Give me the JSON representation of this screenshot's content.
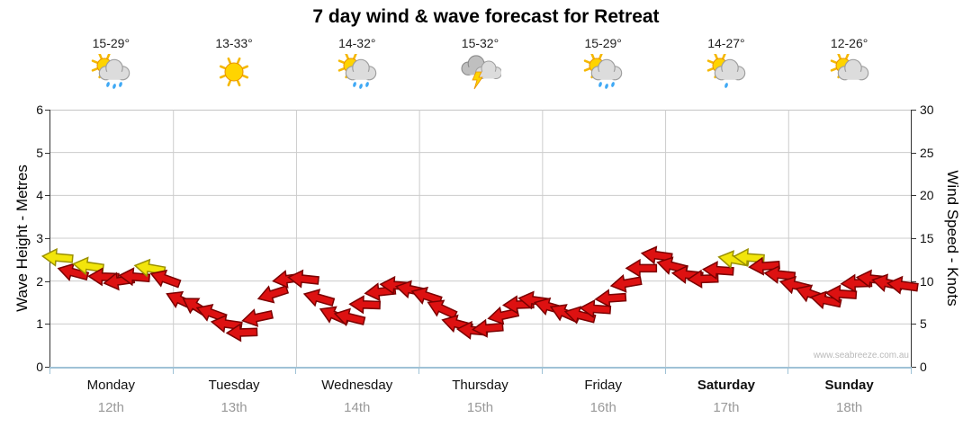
{
  "title": "7 day wind & wave forecast for Retreat",
  "watermark": "www.seabreeze.com.au",
  "axes": {
    "left_title": "Wave Height - Metres",
    "right_title": "Wind Speed - Knots",
    "left_ticks": [
      "0",
      "1",
      "2",
      "3",
      "4",
      "5",
      "6"
    ],
    "right_ticks": [
      "0",
      "5",
      "10",
      "15",
      "20",
      "25",
      "30"
    ]
  },
  "days": [
    {
      "name": "Monday",
      "date": "12th",
      "temp": "15-29°",
      "icon": "sun-showers",
      "bold": false
    },
    {
      "name": "Tuesday",
      "date": "13th",
      "temp": "13-33°",
      "icon": "sunny",
      "bold": false
    },
    {
      "name": "Wednesday",
      "date": "14th",
      "temp": "14-32°",
      "icon": "sun-showers",
      "bold": false
    },
    {
      "name": "Thursday",
      "date": "15th",
      "temp": "15-32°",
      "icon": "storm",
      "bold": false
    },
    {
      "name": "Friday",
      "date": "16th",
      "temp": "15-29°",
      "icon": "sun-showers",
      "bold": false
    },
    {
      "name": "Saturday",
      "date": "17th",
      "temp": "14-27°",
      "icon": "sun-cloud-drizzle",
      "bold": true
    },
    {
      "name": "Sunday",
      "date": "18th",
      "temp": "12-26°",
      "icon": "sun-cloud",
      "bold": true
    }
  ],
  "chart_data": {
    "type": "wind-arrows",
    "title": "7 day wind & wave forecast for Retreat",
    "ylabel_left": "Wave Height - Metres",
    "ylabel_right": "Wind Speed - Knots",
    "ylim_left": [
      0,
      6
    ],
    "ylim_right": [
      0,
      30
    ],
    "grid": true,
    "categories": [
      "Monday 12th",
      "Tuesday 13th",
      "Wednesday 14th",
      "Thursday 15th",
      "Friday 16th",
      "Saturday 17th",
      "Sunday 18th"
    ],
    "points_per_day": 8,
    "arrow_color_key": {
      "r": "red",
      "y": "yellow"
    },
    "points": [
      {
        "v": 2.55,
        "d": 185,
        "c": "y"
      },
      {
        "v": 2.2,
        "d": 195,
        "c": "r"
      },
      {
        "v": 2.35,
        "d": 188,
        "c": "y"
      },
      {
        "v": 2.1,
        "d": 182,
        "c": "r"
      },
      {
        "v": 2.0,
        "d": 172,
        "c": "r"
      },
      {
        "v": 2.1,
        "d": 185,
        "c": "r"
      },
      {
        "v": 2.3,
        "d": 190,
        "c": "y"
      },
      {
        "v": 2.05,
        "d": 200,
        "c": "r"
      },
      {
        "v": 1.55,
        "d": 205,
        "c": "r"
      },
      {
        "v": 1.4,
        "d": 212,
        "c": "r"
      },
      {
        "v": 1.25,
        "d": 200,
        "c": "r"
      },
      {
        "v": 1.0,
        "d": 188,
        "c": "r"
      },
      {
        "v": 0.8,
        "d": 178,
        "c": "r"
      },
      {
        "v": 1.15,
        "d": 168,
        "c": "r"
      },
      {
        "v": 1.7,
        "d": 162,
        "c": "r"
      },
      {
        "v": 2.05,
        "d": 172,
        "c": "r"
      },
      {
        "v": 2.05,
        "d": 186,
        "c": "r"
      },
      {
        "v": 1.6,
        "d": 196,
        "c": "r"
      },
      {
        "v": 1.2,
        "d": 204,
        "c": "r"
      },
      {
        "v": 1.15,
        "d": 194,
        "c": "r"
      },
      {
        "v": 1.45,
        "d": 182,
        "c": "r"
      },
      {
        "v": 1.75,
        "d": 174,
        "c": "r"
      },
      {
        "v": 1.9,
        "d": 184,
        "c": "r"
      },
      {
        "v": 1.8,
        "d": 192,
        "c": "r"
      },
      {
        "v": 1.65,
        "d": 198,
        "c": "r"
      },
      {
        "v": 1.35,
        "d": 205,
        "c": "r"
      },
      {
        "v": 1.0,
        "d": 195,
        "c": "r"
      },
      {
        "v": 0.85,
        "d": 185,
        "c": "r"
      },
      {
        "v": 0.9,
        "d": 175,
        "c": "r"
      },
      {
        "v": 1.2,
        "d": 168,
        "c": "r"
      },
      {
        "v": 1.45,
        "d": 178,
        "c": "r"
      },
      {
        "v": 1.55,
        "d": 188,
        "c": "r"
      },
      {
        "v": 1.4,
        "d": 196,
        "c": "r"
      },
      {
        "v": 1.25,
        "d": 204,
        "c": "r"
      },
      {
        "v": 1.2,
        "d": 194,
        "c": "r"
      },
      {
        "v": 1.35,
        "d": 184,
        "c": "r"
      },
      {
        "v": 1.6,
        "d": 176,
        "c": "r"
      },
      {
        "v": 1.95,
        "d": 170,
        "c": "r"
      },
      {
        "v": 2.3,
        "d": 180,
        "c": "r"
      },
      {
        "v": 2.6,
        "d": 188,
        "c": "r"
      },
      {
        "v": 2.35,
        "d": 194,
        "c": "r"
      },
      {
        "v": 2.15,
        "d": 186,
        "c": "r"
      },
      {
        "v": 2.05,
        "d": 178,
        "c": "r"
      },
      {
        "v": 2.25,
        "d": 184,
        "c": "r"
      },
      {
        "v": 2.5,
        "d": 190,
        "c": "y"
      },
      {
        "v": 2.55,
        "d": 184,
        "c": "y"
      },
      {
        "v": 2.35,
        "d": 176,
        "c": "r"
      },
      {
        "v": 2.15,
        "d": 186,
        "c": "r"
      },
      {
        "v": 1.9,
        "d": 194,
        "c": "r"
      },
      {
        "v": 1.7,
        "d": 200,
        "c": "r"
      },
      {
        "v": 1.55,
        "d": 192,
        "c": "r"
      },
      {
        "v": 1.7,
        "d": 184,
        "c": "r"
      },
      {
        "v": 1.95,
        "d": 178,
        "c": "r"
      },
      {
        "v": 2.05,
        "d": 186,
        "c": "r"
      },
      {
        "v": 1.95,
        "d": 192,
        "c": "r"
      },
      {
        "v": 1.9,
        "d": 188,
        "c": "r"
      }
    ],
    "colors": {
      "red_arrow_fill": "#DD1111",
      "red_arrow_stroke": "#7A0000",
      "yellow_arrow_fill": "#F2E50B",
      "yellow_arrow_stroke": "#9A9000",
      "gridline": "#CCCCCC",
      "bottom_axis": "#9FC2D6"
    }
  }
}
